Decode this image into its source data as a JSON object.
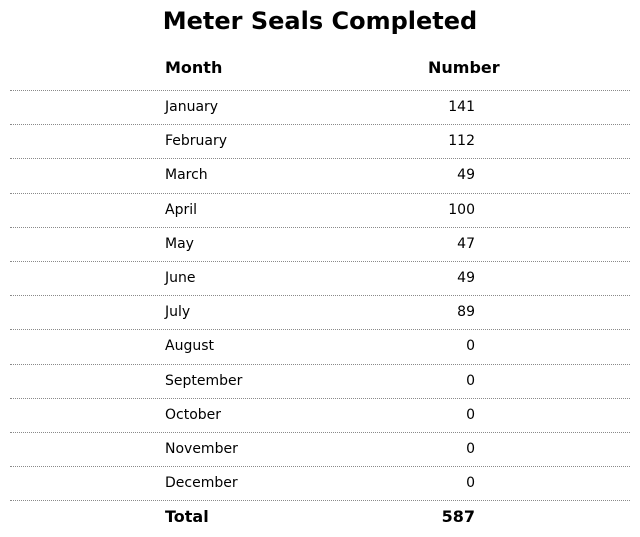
{
  "chart_data": {
    "type": "table",
    "title": "Meter Seals Completed",
    "columns": [
      "Month",
      "Number"
    ],
    "rows": [
      {
        "month": "January",
        "number": "141"
      },
      {
        "month": "February",
        "number": "112"
      },
      {
        "month": "March",
        "number": "49"
      },
      {
        "month": "April",
        "number": "100"
      },
      {
        "month": "May",
        "number": "47"
      },
      {
        "month": "June",
        "number": "49"
      },
      {
        "month": "July",
        "number": "89"
      },
      {
        "month": "August",
        "number": "0"
      },
      {
        "month": "September",
        "number": "0"
      },
      {
        "month": "October",
        "number": "0"
      },
      {
        "month": "November",
        "number": "0"
      },
      {
        "month": "December",
        "number": "0"
      }
    ],
    "total": {
      "label": "Total",
      "number": "587"
    }
  }
}
